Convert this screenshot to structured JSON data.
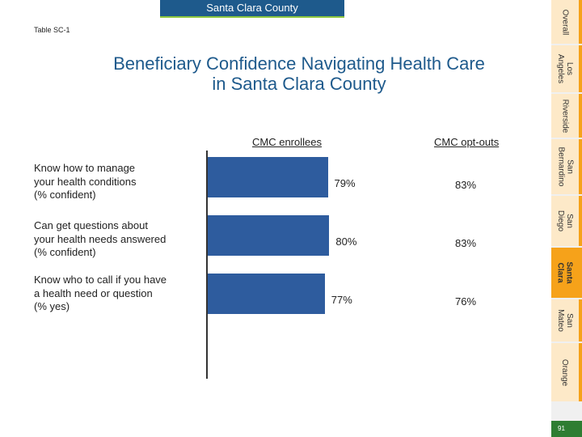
{
  "header": {
    "county_banner": "Santa Clara County",
    "table_id": "Table SC-1"
  },
  "title": {
    "line1": "Beneficiary Confidence Navigating Health Care",
    "line2": "in Santa Clara County"
  },
  "chart_data": {
    "type": "bar",
    "orientation": "horizontal",
    "title": "Beneficiary Confidence Navigating Health Care in Santa Clara County",
    "columns": [
      "CMC enrollees",
      "CMC opt-outs"
    ],
    "categories": [
      "Know how to manage your health conditions (% confident)",
      "Can get questions about your health needs answered (% confident)",
      "Know who to call if you have a health need or question (% yes)"
    ],
    "category_lines": [
      [
        "Know how to manage",
        "your health conditions",
        "(% confident)"
      ],
      [
        "Can get questions about",
        "your health needs answered",
        "(% confident)"
      ],
      [
        "Know who to call if you have",
        "a health need or question",
        "(% yes)"
      ]
    ],
    "series": [
      {
        "name": "CMC enrollees",
        "values": [
          79,
          80,
          77
        ],
        "labels": [
          "79%",
          "80%",
          "77%"
        ]
      },
      {
        "name": "CMC opt-outs",
        "values": [
          83,
          83,
          76
        ],
        "labels": [
          "83%",
          "83%",
          "76%"
        ]
      }
    ],
    "xlim": [
      0,
      100
    ],
    "bar_color": "#2e5c9e"
  },
  "sidebar": {
    "tabs": [
      {
        "label": "Overall",
        "active": false
      },
      {
        "label": "Los\nAngeles",
        "active": false
      },
      {
        "label": "Riverside",
        "active": false
      },
      {
        "label": "San\nBernardino",
        "active": false
      },
      {
        "label": "San\nDiego",
        "active": false
      },
      {
        "label": "Santa\nClara",
        "active": true
      },
      {
        "label": "San\nMateo",
        "active": false
      },
      {
        "label": "Orange",
        "active": false
      }
    ]
  },
  "page_number": "91"
}
